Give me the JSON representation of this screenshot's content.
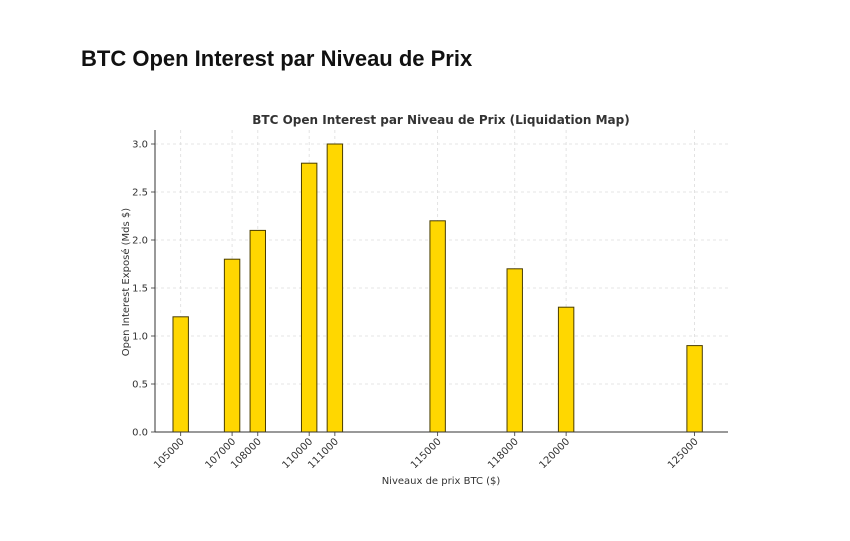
{
  "page": {
    "heading": "BTC Open Interest par Niveau de Prix"
  },
  "colors": {
    "bar_fill": "#ffd700",
    "bar_stroke": "#4a3d00",
    "axis": "#333333"
  },
  "chart_data": {
    "type": "bar",
    "title": "BTC Open Interest par Niveau de Prix (Liquidation Map)",
    "xlabel": "Niveaux de prix BTC ($)",
    "ylabel": "Open Interest Exposé (Mds $)",
    "x": [
      105000,
      107000,
      108000,
      110000,
      111000,
      115000,
      118000,
      120000,
      125000
    ],
    "values": [
      1.2,
      1.8,
      2.1,
      2.8,
      3.0,
      2.2,
      1.7,
      1.3,
      0.9
    ],
    "tick_labels": [
      "105000",
      "107000",
      "108000",
      "110000",
      "111000",
      "115000",
      "118000",
      "120000",
      "125000"
    ],
    "ylim": [
      0,
      3.0
    ],
    "yticks": [
      "0.0",
      "0.5",
      "1.0",
      "1.5",
      "2.0",
      "2.5",
      "3.0"
    ],
    "xlim": [
      104000,
      126300
    ],
    "grid": true,
    "bar_width_units": 600
  }
}
